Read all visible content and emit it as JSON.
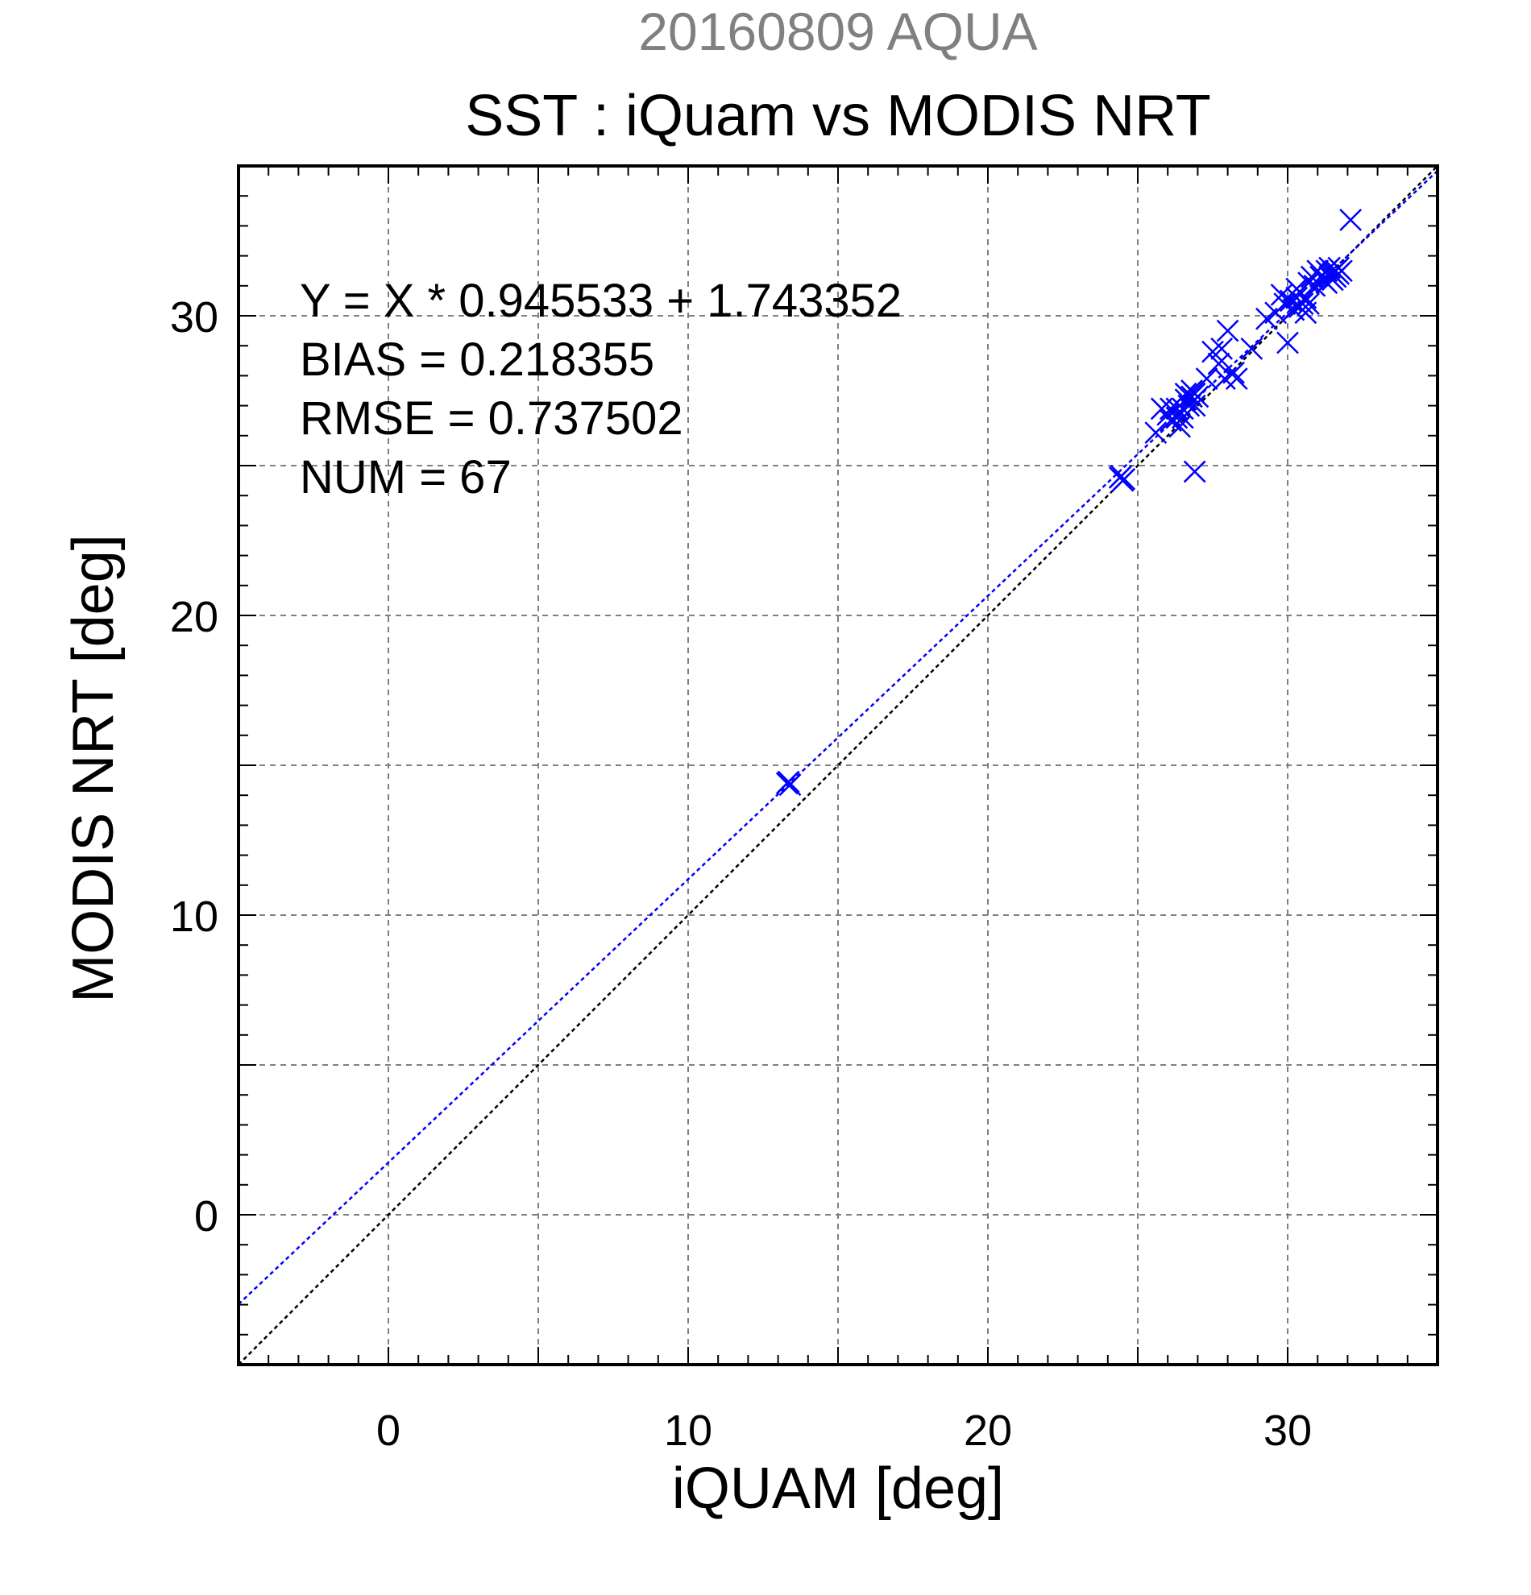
{
  "chart_data": {
    "type": "scatter",
    "supertitle": "20160809 AQUA",
    "title": "SST : iQuam vs MODIS NRT",
    "xlabel": "iQUAM [deg]",
    "ylabel": "MODIS NRT [deg]",
    "xlim": [
      -5,
      35
    ],
    "ylim": [
      -5,
      35
    ],
    "xticks": [
      0,
      10,
      20,
      30
    ],
    "yticks": [
      0,
      10,
      20,
      30
    ],
    "xtick_labels": [
      "0",
      "10",
      "20",
      "30"
    ],
    "ytick_labels": [
      "0",
      "10",
      "20",
      "30"
    ],
    "grid": true,
    "grid_step": 5,
    "minor_tick_step": 1,
    "stats_lines": [
      "Y = X * 0.945533 + 1.743352",
      "BIAS = 0.218355",
      "RMSE = 0.737502",
      "NUM = 67"
    ],
    "regression": {
      "slope": 0.945533,
      "intercept": 1.743352,
      "color": "#0000ff"
    },
    "identity_line": {
      "slope": 1,
      "intercept": 0,
      "color": "#000000"
    },
    "marker_color": "#0000ff",
    "points": [
      [
        13.3,
        14.4
      ],
      [
        13.4,
        14.35
      ],
      [
        13.35,
        14.45
      ],
      [
        24.4,
        24.6
      ],
      [
        24.5,
        24.5
      ],
      [
        24.45,
        24.65
      ],
      [
        24.55,
        24.55
      ],
      [
        25.6,
        26.1
      ],
      [
        25.8,
        26.9
      ],
      [
        26.0,
        26.7
      ],
      [
        26.1,
        26.9
      ],
      [
        26.1,
        26.5
      ],
      [
        26.3,
        26.6
      ],
      [
        26.3,
        26.9
      ],
      [
        26.4,
        26.3
      ],
      [
        26.5,
        26.6
      ],
      [
        26.5,
        26.9
      ],
      [
        26.6,
        27.2
      ],
      [
        26.6,
        27.4
      ],
      [
        26.7,
        27.0
      ],
      [
        26.8,
        27.3
      ],
      [
        26.8,
        27.5
      ],
      [
        26.9,
        27.0
      ],
      [
        26.9,
        27.4
      ],
      [
        27.0,
        27.3
      ],
      [
        26.9,
        24.8
      ],
      [
        27.3,
        27.9
      ],
      [
        27.5,
        28.8
      ],
      [
        27.7,
        28.4
      ],
      [
        27.8,
        28.9
      ],
      [
        27.9,
        27.9
      ],
      [
        28.0,
        29.5
      ],
      [
        28.2,
        28.1
      ],
      [
        28.3,
        27.9
      ],
      [
        28.8,
        28.9
      ],
      [
        29.3,
        29.9
      ],
      [
        29.6,
        30.1
      ],
      [
        29.8,
        30.7
      ],
      [
        29.9,
        30.4
      ],
      [
        30.0,
        29.1
      ],
      [
        30.1,
        30.5
      ],
      [
        30.2,
        30.2
      ],
      [
        30.3,
        30.6
      ],
      [
        30.3,
        30.9
      ],
      [
        30.4,
        30.3
      ],
      [
        30.5,
        30.4
      ],
      [
        30.6,
        30.1
      ],
      [
        30.6,
        30.6
      ],
      [
        30.7,
        30.4
      ],
      [
        30.7,
        31.1
      ],
      [
        30.8,
        31.3
      ],
      [
        30.9,
        31.0
      ],
      [
        31.0,
        31.5
      ],
      [
        31.1,
        31.3
      ],
      [
        31.2,
        31.2
      ],
      [
        31.3,
        31.1
      ],
      [
        31.3,
        31.5
      ],
      [
        31.4,
        31.3
      ],
      [
        31.4,
        31.6
      ],
      [
        31.5,
        31.2
      ],
      [
        31.5,
        31.4
      ],
      [
        31.6,
        31.3
      ],
      [
        31.6,
        31.5
      ],
      [
        31.7,
        31.4
      ],
      [
        31.7,
        31.6
      ],
      [
        31.8,
        31.5
      ],
      [
        32.1,
        33.2
      ]
    ]
  }
}
